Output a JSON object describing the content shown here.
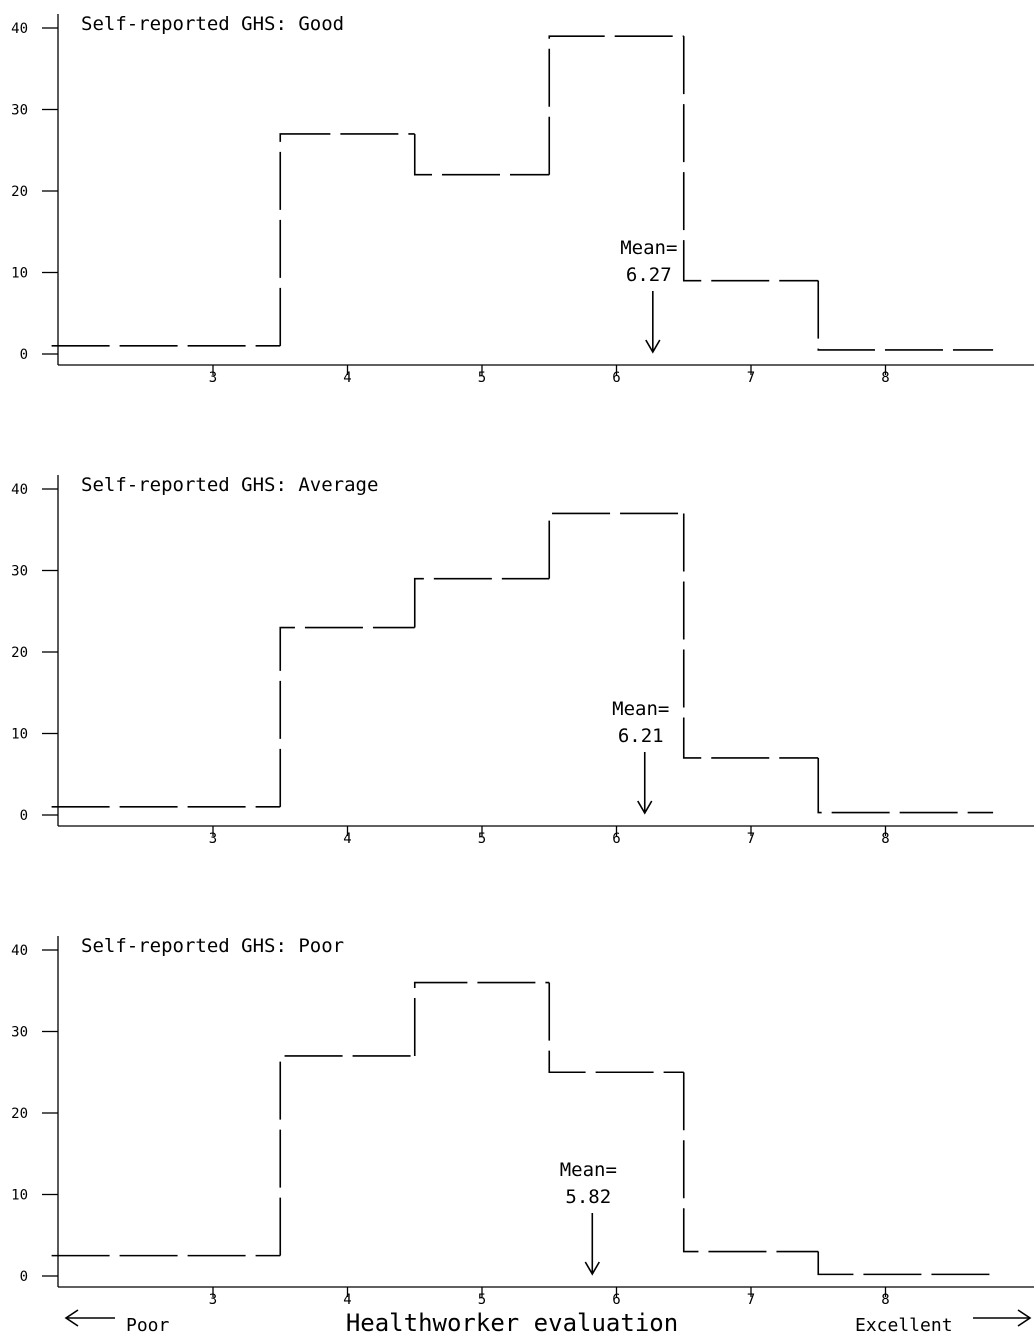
{
  "chart_data": [
    {
      "type": "step",
      "title": "Self-reported GHS: Good",
      "x_ticks": [
        3,
        4,
        5,
        6,
        7,
        8
      ],
      "y_ticks": [
        0,
        10,
        20,
        30,
        40
      ],
      "xlim": [
        1.6,
        8.8
      ],
      "ylim": [
        0,
        40
      ],
      "bins": [
        {
          "from": 1.8,
          "to": 3.5,
          "value": 1
        },
        {
          "from": 3.5,
          "to": 4.5,
          "value": 27
        },
        {
          "from": 4.5,
          "to": 5.5,
          "value": 22
        },
        {
          "from": 5.5,
          "to": 6.5,
          "value": 39
        },
        {
          "from": 6.5,
          "to": 7.5,
          "value": 9
        },
        {
          "from": 7.5,
          "to": 8.8,
          "value": 0.5
        }
      ],
      "mean": 6.27,
      "mean_label": "Mean=",
      "mean_value_label": "6.27"
    },
    {
      "type": "step",
      "title": "Self-reported GHS: Average",
      "x_ticks": [
        3,
        4,
        5,
        6,
        7,
        8
      ],
      "y_ticks": [
        0,
        10,
        20,
        30,
        40
      ],
      "xlim": [
        1.6,
        8.8
      ],
      "ylim": [
        0,
        40
      ],
      "bins": [
        {
          "from": 1.8,
          "to": 3.5,
          "value": 1
        },
        {
          "from": 3.5,
          "to": 4.5,
          "value": 23
        },
        {
          "from": 4.5,
          "to": 5.5,
          "value": 29
        },
        {
          "from": 5.5,
          "to": 6.5,
          "value": 37
        },
        {
          "from": 6.5,
          "to": 7.5,
          "value": 7
        },
        {
          "from": 7.5,
          "to": 8.8,
          "value": 0.3
        }
      ],
      "mean": 6.21,
      "mean_label": "Mean=",
      "mean_value_label": "6.21"
    },
    {
      "type": "step",
      "title": "Self-reported GHS: Poor",
      "x_ticks": [
        3,
        4,
        5,
        6,
        7,
        8
      ],
      "y_ticks": [
        0,
        10,
        20,
        30,
        40
      ],
      "xlim": [
        1.6,
        8.8
      ],
      "ylim": [
        0,
        40
      ],
      "bins": [
        {
          "from": 1.8,
          "to": 3.5,
          "value": 2.5
        },
        {
          "from": 3.5,
          "to": 4.5,
          "value": 27
        },
        {
          "from": 4.5,
          "to": 5.5,
          "value": 36
        },
        {
          "from": 5.5,
          "to": 6.5,
          "value": 25
        },
        {
          "from": 6.5,
          "to": 7.5,
          "value": 3
        },
        {
          "from": 7.5,
          "to": 8.8,
          "value": 0.2
        }
      ],
      "mean": 5.82,
      "mean_label": "Mean=",
      "mean_value_label": "5.82"
    }
  ],
  "footer": {
    "left_label": "Poor",
    "xlabel": "Healthworker evaluation",
    "right_label": "Excellent"
  }
}
